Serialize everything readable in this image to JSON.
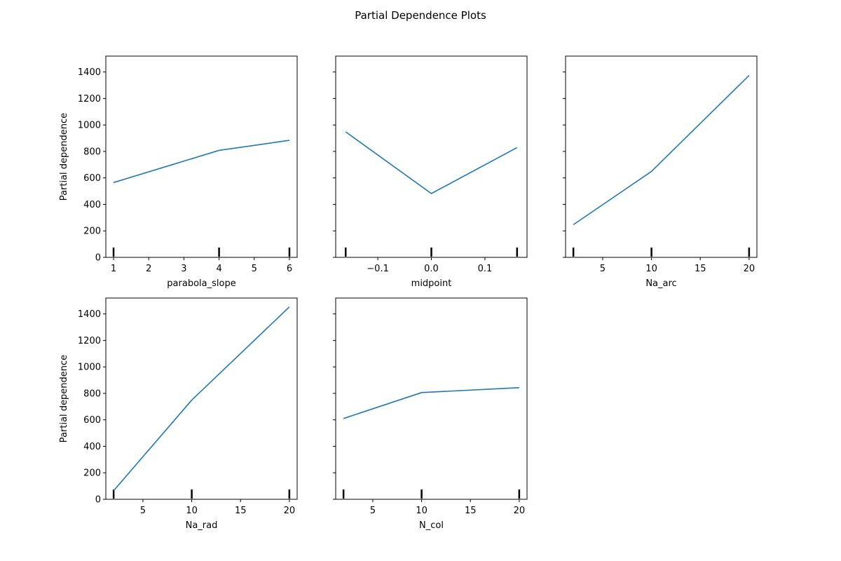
{
  "figure": {
    "title": "Partial Dependence Plots"
  },
  "colors": {
    "line": "#1f77b4",
    "axes": "#000000",
    "background": "#ffffff"
  },
  "chart_data": [
    {
      "type": "line",
      "xlabel": "parabola_slope",
      "ylabel": "Partial dependence",
      "xlim": [
        0.78,
        6.22
      ],
      "ylim": [
        0,
        1520
      ],
      "xticks": [
        1,
        2,
        3,
        4,
        5,
        6
      ],
      "xtick_labels": [
        "1",
        "2",
        "3",
        "4",
        "5",
        "6"
      ],
      "yticks": [
        0,
        200,
        400,
        600,
        800,
        1000,
        1200,
        1400
      ],
      "ytick_labels": [
        "0",
        "200",
        "400",
        "600",
        "800",
        "1000",
        "1200",
        "1400"
      ],
      "show_ytick_labels": true,
      "x": [
        1,
        4,
        6
      ],
      "y": [
        565,
        808,
        884
      ],
      "deciles": [
        1,
        4,
        6
      ],
      "grid": false
    },
    {
      "type": "line",
      "xlabel": "midpoint",
      "ylabel": "",
      "xlim": [
        -0.1786,
        0.1786
      ],
      "ylim": [
        0,
        1520
      ],
      "xticks": [
        -0.1,
        0.0,
        0.1
      ],
      "xtick_labels": [
        "−0.1",
        "0.0",
        "0.1"
      ],
      "yticks": [
        0,
        200,
        400,
        600,
        800,
        1000,
        1200,
        1400
      ],
      "ytick_labels": [
        "0",
        "200",
        "400",
        "600",
        "800",
        "1000",
        "1200",
        "1400"
      ],
      "show_ytick_labels": false,
      "x": [
        -0.16,
        0.0,
        0.16
      ],
      "y": [
        948,
        482,
        829
      ],
      "deciles": [
        -0.16,
        0.0,
        0.16
      ],
      "grid": false
    },
    {
      "type": "line",
      "xlabel": "Na_arc",
      "ylabel": "",
      "xlim": [
        1.2,
        20.8
      ],
      "ylim": [
        0,
        1520
      ],
      "xticks": [
        5,
        10,
        15,
        20
      ],
      "xtick_labels": [
        "5",
        "10",
        "15",
        "20"
      ],
      "yticks": [
        0,
        200,
        400,
        600,
        800,
        1000,
        1200,
        1400
      ],
      "ytick_labels": [
        "0",
        "200",
        "400",
        "600",
        "800",
        "1000",
        "1200",
        "1400"
      ],
      "show_ytick_labels": false,
      "x": [
        2,
        10,
        20
      ],
      "y": [
        247,
        649,
        1374
      ],
      "deciles": [
        2,
        10,
        20
      ],
      "grid": false
    },
    {
      "type": "line",
      "xlabel": "Na_rad",
      "ylabel": "Partial dependence",
      "xlim": [
        1.2,
        20.8
      ],
      "ylim": [
        0,
        1520
      ],
      "xticks": [
        5,
        10,
        15,
        20
      ],
      "xtick_labels": [
        "5",
        "10",
        "15",
        "20"
      ],
      "yticks": [
        0,
        200,
        400,
        600,
        800,
        1000,
        1200,
        1400
      ],
      "ytick_labels": [
        "0",
        "200",
        "400",
        "600",
        "800",
        "1000",
        "1200",
        "1400"
      ],
      "show_ytick_labels": true,
      "x": [
        2,
        10,
        20
      ],
      "y": [
        65,
        749,
        1453
      ],
      "deciles": [
        2,
        10,
        20
      ],
      "grid": false
    },
    {
      "type": "line",
      "xlabel": "N_col",
      "ylabel": "",
      "xlim": [
        1.2,
        20.8
      ],
      "ylim": [
        0,
        1520
      ],
      "xticks": [
        5,
        10,
        15,
        20
      ],
      "xtick_labels": [
        "5",
        "10",
        "15",
        "20"
      ],
      "yticks": [
        0,
        200,
        400,
        600,
        800,
        1000,
        1200,
        1400
      ],
      "ytick_labels": [
        "0",
        "200",
        "400",
        "600",
        "800",
        "1000",
        "1200",
        "1400"
      ],
      "show_ytick_labels": false,
      "x": [
        2,
        10,
        20
      ],
      "y": [
        610,
        806,
        843
      ],
      "deciles": [
        2,
        10,
        20
      ],
      "grid": false
    }
  ]
}
